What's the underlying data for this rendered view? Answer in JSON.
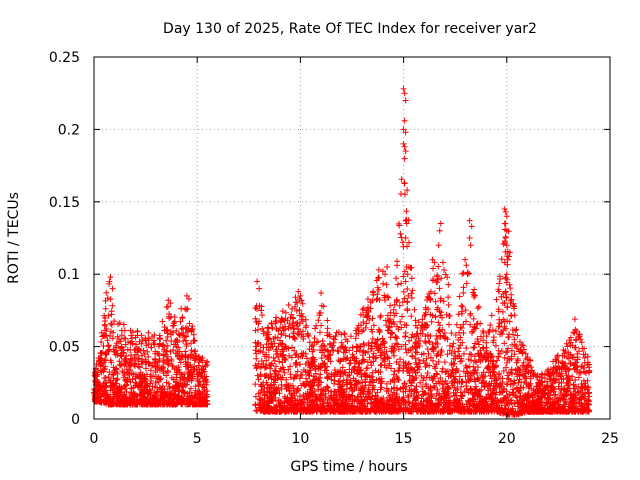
{
  "chart_data": {
    "type": "scatter",
    "title": "Day 130 of 2025, Rate Of TEC Index for receiver yar2",
    "xlabel": "GPS time / hours",
    "ylabel": "ROTI / TECUs",
    "xlim": [
      0,
      25
    ],
    "ylim": [
      0,
      0.25
    ],
    "x_ticks": [
      0,
      5,
      10,
      15,
      20,
      25
    ],
    "x_tick_labels": [
      "0",
      "5",
      "10",
      "15",
      "20",
      "25"
    ],
    "y_ticks": [
      0,
      0.05,
      0.1,
      0.15,
      0.2,
      0.25
    ],
    "y_tick_labels": [
      "0",
      "0.05",
      "0.1",
      "0.15",
      "0.2",
      "0.25"
    ],
    "grid": true,
    "marker": "+",
    "color": "#ff0000",
    "series": [
      {
        "name": "ROTI",
        "envelope": [
          [
            0.0,
            0.012,
            0.035
          ],
          [
            0.2,
            0.012,
            0.04
          ],
          [
            0.7,
            0.01,
            0.1
          ],
          [
            1.0,
            0.01,
            0.07
          ],
          [
            1.5,
            0.01,
            0.065
          ],
          [
            2.0,
            0.01,
            0.065
          ],
          [
            2.5,
            0.01,
            0.06
          ],
          [
            3.0,
            0.01,
            0.06
          ],
          [
            3.5,
            0.01,
            0.08
          ],
          [
            4.0,
            0.01,
            0.07
          ],
          [
            4.5,
            0.01,
            0.085
          ],
          [
            5.0,
            0.01,
            0.045
          ],
          [
            5.5,
            0.01,
            0.04
          ],
          [
            7.8,
            0.005,
            0.095
          ],
          [
            8.5,
            0.005,
            0.065
          ],
          [
            9.0,
            0.005,
            0.075
          ],
          [
            9.5,
            0.005,
            0.08
          ],
          [
            10.0,
            0.005,
            0.09
          ],
          [
            10.5,
            0.005,
            0.05
          ],
          [
            11.0,
            0.005,
            0.085
          ],
          [
            11.5,
            0.005,
            0.06
          ],
          [
            12.0,
            0.005,
            0.06
          ],
          [
            12.5,
            0.005,
            0.065
          ],
          [
            13.0,
            0.005,
            0.075
          ],
          [
            13.5,
            0.005,
            0.09
          ],
          [
            14.0,
            0.005,
            0.105
          ],
          [
            14.5,
            0.005,
            0.07
          ],
          [
            15.0,
            0.005,
            0.2
          ],
          [
            15.3,
            0.005,
            0.13
          ],
          [
            15.6,
            0.005,
            0.065
          ],
          [
            16.0,
            0.005,
            0.075
          ],
          [
            16.5,
            0.005,
            0.11
          ],
          [
            17.0,
            0.005,
            0.11
          ],
          [
            17.5,
            0.005,
            0.065
          ],
          [
            18.0,
            0.005,
            0.12
          ],
          [
            18.5,
            0.005,
            0.085
          ],
          [
            19.0,
            0.005,
            0.06
          ],
          [
            19.5,
            0.005,
            0.085
          ],
          [
            20.0,
            0.003,
            0.145
          ],
          [
            20.5,
            0.003,
            0.06
          ],
          [
            21.0,
            0.005,
            0.045
          ],
          [
            21.5,
            0.005,
            0.03
          ],
          [
            22.0,
            0.005,
            0.035
          ],
          [
            22.5,
            0.005,
            0.045
          ],
          [
            23.0,
            0.005,
            0.055
          ],
          [
            23.5,
            0.005,
            0.07
          ],
          [
            24.0,
            0.005,
            0.045
          ]
        ],
        "highlights": [
          [
            0.1,
            0.025
          ],
          [
            0.05,
            0.02
          ],
          [
            0.1,
            0.035
          ],
          [
            0.8,
            0.098
          ],
          [
            0.75,
            0.095
          ],
          [
            0.9,
            0.09
          ],
          [
            3.6,
            0.082
          ],
          [
            3.7,
            0.08
          ],
          [
            4.5,
            0.085
          ],
          [
            4.6,
            0.083
          ],
          [
            7.9,
            0.095
          ],
          [
            8.0,
            0.09
          ],
          [
            9.9,
            0.088
          ],
          [
            10.0,
            0.085
          ],
          [
            11.0,
            0.087
          ],
          [
            13.8,
            0.103
          ],
          [
            14.0,
            0.102
          ],
          [
            14.2,
            0.105
          ],
          [
            14.1,
            0.1
          ],
          [
            15.0,
            0.228
          ],
          [
            15.05,
            0.225
          ],
          [
            15.1,
            0.22
          ],
          [
            15.05,
            0.206
          ],
          [
            15.0,
            0.2
          ],
          [
            15.1,
            0.198
          ],
          [
            15.0,
            0.19
          ],
          [
            15.05,
            0.188
          ],
          [
            15.1,
            0.185
          ],
          [
            15.05,
            0.163
          ],
          [
            15.1,
            0.137
          ],
          [
            15.15,
            0.135
          ],
          [
            15.1,
            0.125
          ],
          [
            15.15,
            0.105
          ],
          [
            15.2,
            0.1
          ],
          [
            15.1,
            0.095
          ],
          [
            16.4,
            0.11
          ],
          [
            16.5,
            0.108
          ],
          [
            16.8,
            0.135
          ],
          [
            16.75,
            0.13
          ],
          [
            16.7,
            0.12
          ],
          [
            18.2,
            0.137
          ],
          [
            18.3,
            0.133
          ],
          [
            18.2,
            0.125
          ],
          [
            18.25,
            0.12
          ],
          [
            18.1,
            0.1
          ],
          [
            19.9,
            0.145
          ],
          [
            19.95,
            0.143
          ],
          [
            20.0,
            0.14
          ],
          [
            19.9,
            0.135
          ],
          [
            20.0,
            0.13
          ],
          [
            19.95,
            0.125
          ],
          [
            20.0,
            0.12
          ],
          [
            20.05,
            0.11
          ],
          [
            19.9,
            0.108
          ],
          [
            20.0,
            0.1
          ],
          [
            23.3,
            0.069
          ],
          [
            22.5,
            0.04
          ]
        ]
      }
    ]
  }
}
